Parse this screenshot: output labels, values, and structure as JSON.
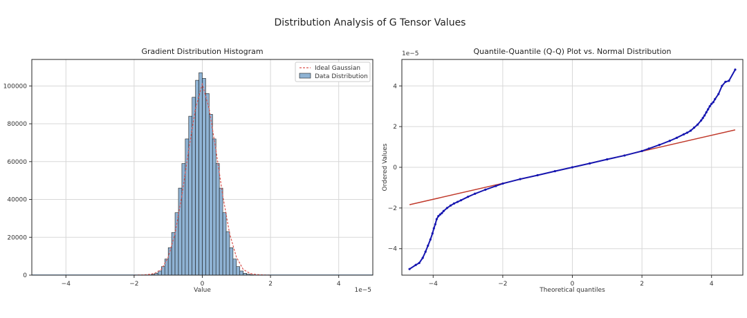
{
  "figure": {
    "title": "Distribution Analysis of G Tensor Values"
  },
  "colors": {
    "bar_fill": "#8fb3d4",
    "bar_edge": "#1a1a1a",
    "gaussian": "#d9534f",
    "qq_points": "#1515b0",
    "qq_line": "#c0392b",
    "grid": "#d7d7d7"
  },
  "chart_data": [
    {
      "type": "bar",
      "title": "Gradient Distribution Histogram",
      "xlabel": "Value",
      "ylabel": "",
      "x_offset_label": "1e−5",
      "xlim": [
        -5.0,
        5.0
      ],
      "ylim": [
        0,
        114000
      ],
      "x_ticks": [
        -4,
        -2,
        0,
        2,
        4
      ],
      "x_tick_labels": [
        "−4",
        "−2",
        "0",
        "2",
        "4"
      ],
      "y_ticks": [
        0,
        20000,
        40000,
        60000,
        80000,
        100000
      ],
      "y_tick_labels": [
        "0",
        "20000",
        "40000",
        "60000",
        "80000",
        "100000"
      ],
      "grid": true,
      "legend_position": "top-right",
      "legend": [
        "Ideal Gaussian",
        "Data Distribution"
      ],
      "bin_width": 0.1,
      "bins_x": [
        -1.45,
        -1.35,
        -1.25,
        -1.15,
        -1.05,
        -0.95,
        -0.85,
        -0.75,
        -0.65,
        -0.55,
        -0.45,
        -0.35,
        -0.25,
        -0.15,
        -0.05,
        0.05,
        0.15,
        0.25,
        0.35,
        0.45,
        0.55,
        0.65,
        0.75,
        0.85,
        0.95,
        1.05,
        1.15,
        1.25,
        1.35,
        1.45
      ],
      "bins_count": [
        400,
        1000,
        2200,
        4500,
        8500,
        14500,
        22500,
        33000,
        46000,
        59000,
        72000,
        84000,
        94000,
        103000,
        107000,
        104000,
        96000,
        85000,
        72000,
        59000,
        46000,
        33000,
        23000,
        14500,
        8500,
        4500,
        2200,
        1000,
        500,
        200
      ],
      "series": [
        {
          "name": "Ideal Gaussian",
          "kind": "line",
          "x": [
            -2.0,
            -1.8,
            -1.6,
            -1.4,
            -1.2,
            -1.0,
            -0.8,
            -0.6,
            -0.4,
            -0.2,
            0.0,
            0.2,
            0.4,
            0.6,
            0.8,
            1.0,
            1.2,
            1.4,
            1.6,
            1.8,
            2.0
          ],
          "values": [
            0,
            100,
            300,
            900,
            3000,
            9500,
            22000,
            42000,
            66000,
            88000,
            101000,
            88000,
            66000,
            42000,
            22000,
            9500,
            3000,
            900,
            300,
            100,
            0
          ]
        }
      ]
    },
    {
      "type": "scatter",
      "title": "Quantile-Quantile (Q-Q) Plot vs. Normal Distribution",
      "xlabel": "Theoretical quantiles",
      "ylabel": "Ordered Values",
      "y_offset_label": "1e−5",
      "xlim": [
        -4.9,
        4.9
      ],
      "ylim": [
        -5.3,
        5.3
      ],
      "x_ticks": [
        -4,
        -2,
        0,
        2,
        4
      ],
      "x_tick_labels": [
        "−4",
        "−2",
        "0",
        "2",
        "4"
      ],
      "y_ticks": [
        -4,
        -2,
        0,
        2,
        4
      ],
      "y_tick_labels": [
        "−4",
        "−2",
        "0",
        "2",
        "4"
      ],
      "grid": true,
      "points": {
        "x": [
          -4.68,
          -4.5,
          -4.4,
          -4.3,
          -4.22,
          -4.15,
          -4.08,
          -4.02,
          -3.98,
          -3.94,
          -3.9,
          -3.85,
          -3.8,
          -3.75,
          -3.7,
          -3.6,
          -3.5,
          -3.4,
          -3.3,
          -3.2,
          -3.0,
          -2.8,
          -2.5,
          -2.2,
          -2.0,
          -1.5,
          -1.0,
          -0.5,
          0.0,
          0.5,
          1.0,
          1.5,
          2.0,
          2.2,
          2.5,
          2.8,
          3.0,
          3.2,
          3.3,
          3.4,
          3.5,
          3.6,
          3.7,
          3.75,
          3.8,
          3.85,
          3.9,
          3.95,
          4.0,
          4.05,
          4.1,
          4.2,
          4.3,
          4.4,
          4.5,
          4.68
        ],
        "y": [
          -5.0,
          -4.8,
          -4.7,
          -4.45,
          -4.15,
          -3.85,
          -3.55,
          -3.25,
          -3.0,
          -2.8,
          -2.55,
          -2.4,
          -2.32,
          -2.25,
          -2.15,
          -2.0,
          -1.88,
          -1.78,
          -1.7,
          -1.62,
          -1.45,
          -1.3,
          -1.1,
          -0.92,
          -0.8,
          -0.58,
          -0.39,
          -0.19,
          0.0,
          0.19,
          0.39,
          0.58,
          0.8,
          0.92,
          1.1,
          1.3,
          1.45,
          1.62,
          1.7,
          1.8,
          1.95,
          2.1,
          2.3,
          2.42,
          2.55,
          2.7,
          2.85,
          3.0,
          3.12,
          3.2,
          3.35,
          3.6,
          4.0,
          4.2,
          4.25,
          4.8
        ]
      },
      "series": [
        {
          "name": "",
          "kind": "line",
          "x": [
            -4.68,
            4.68
          ],
          "values": [
            -1.84,
            1.84
          ]
        }
      ]
    }
  ]
}
